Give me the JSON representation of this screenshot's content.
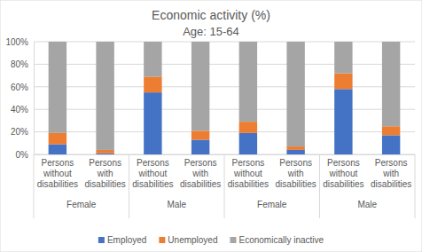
{
  "chart_data": {
    "type": "bar",
    "title": "Economic activity (%)",
    "subtitle": "Age: 15-64",
    "categories": [
      "Persons without disabilities",
      "Persons with disabilities",
      "Persons without disabilities",
      "Persons with disabilities",
      "Persons without disabilities",
      "Persons with disabilities",
      "Persons without disabilities",
      "Persons with disabilities"
    ],
    "groups": [
      "Female",
      "Male",
      "Female",
      "Male"
    ],
    "series": [
      {
        "name": "Employed",
        "color": "#4472c4",
        "values": [
          9,
          1,
          55,
          13,
          19,
          4,
          58,
          17
        ]
      },
      {
        "name": "Unemployed",
        "color": "#ed7d31",
        "values": [
          10,
          3,
          14,
          8,
          10,
          3,
          14,
          8
        ]
      },
      {
        "name": "Economically inactive",
        "color": "#a5a5a5",
        "values": [
          81,
          96,
          31,
          79,
          71,
          93,
          28,
          75
        ]
      }
    ],
    "ylim": [
      0,
      100
    ],
    "yticks": [
      {
        "value": 0,
        "label": "0%"
      },
      {
        "value": 20,
        "label": "20%"
      },
      {
        "value": 40,
        "label": "40%"
      },
      {
        "value": 60,
        "label": "60%"
      },
      {
        "value": 80,
        "label": "80%"
      },
      {
        "value": 100,
        "label": "100%"
      }
    ],
    "grid": true,
    "stacked": true,
    "legend": "bottom"
  }
}
